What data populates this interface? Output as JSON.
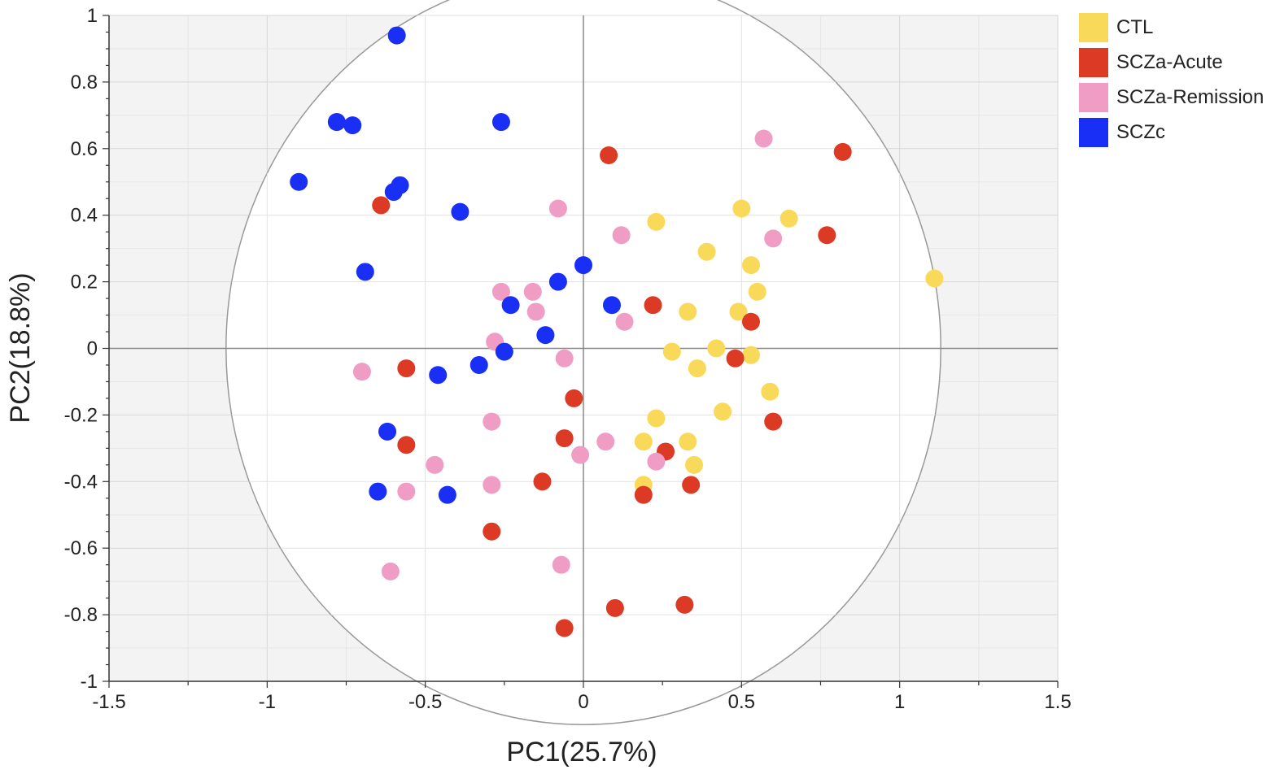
{
  "chart_data": {
    "type": "scatter",
    "xlabel": "PC1(25.7%)",
    "ylabel": "PC2(18.8%)",
    "xlim": [
      -1.5,
      1.5
    ],
    "ylim": [
      -1,
      1
    ],
    "xticks": [
      -1.5,
      -1,
      -0.5,
      0,
      0.5,
      1,
      1.5
    ],
    "yticks": [
      -1,
      -0.8,
      -0.6,
      -0.4,
      -0.2,
      0,
      0.2,
      0.4,
      0.6,
      0.8,
      1
    ],
    "xtick_labels": [
      "-1.5",
      "-1",
      "-0.5",
      "0",
      "0.5",
      "1",
      "1.5"
    ],
    "ytick_labels": [
      "-1",
      "-0.8",
      "-0.6",
      "-0.4",
      "-0.2",
      "0",
      "0.2",
      "0.4",
      "0.6",
      "0.8",
      "1"
    ],
    "grid": true,
    "unit_circle_radius": 1.13,
    "legend_position": "right",
    "series": [
      {
        "name": "CTL",
        "color": "#f9d95a",
        "points": [
          [
            0.23,
            0.38
          ],
          [
            0.5,
            0.42
          ],
          [
            0.65,
            0.39
          ],
          [
            0.39,
            0.29
          ],
          [
            0.53,
            0.25
          ],
          [
            0.55,
            0.17
          ],
          [
            0.33,
            0.11
          ],
          [
            0.49,
            0.11
          ],
          [
            1.11,
            0.21
          ],
          [
            0.28,
            -0.01
          ],
          [
            0.42,
            0.0
          ],
          [
            0.53,
            -0.02
          ],
          [
            0.36,
            -0.06
          ],
          [
            0.59,
            -0.13
          ],
          [
            0.44,
            -0.19
          ],
          [
            0.23,
            -0.21
          ],
          [
            0.19,
            -0.28
          ],
          [
            0.33,
            -0.28
          ],
          [
            0.35,
            -0.35
          ],
          [
            0.19,
            -0.41
          ]
        ]
      },
      {
        "name": "SCZa-Acute",
        "color": "#dc3a25",
        "points": [
          [
            0.08,
            0.58
          ],
          [
            0.82,
            0.59
          ],
          [
            -0.64,
            0.43
          ],
          [
            0.77,
            0.34
          ],
          [
            0.22,
            0.13
          ],
          [
            0.53,
            0.08
          ],
          [
            0.48,
            -0.03
          ],
          [
            -0.56,
            -0.06
          ],
          [
            -0.03,
            -0.15
          ],
          [
            0.6,
            -0.22
          ],
          [
            -0.56,
            -0.29
          ],
          [
            -0.06,
            -0.27
          ],
          [
            0.26,
            -0.31
          ],
          [
            -0.13,
            -0.4
          ],
          [
            0.34,
            -0.41
          ],
          [
            0.19,
            -0.44
          ],
          [
            -0.29,
            -0.55
          ],
          [
            0.1,
            -0.78
          ],
          [
            0.32,
            -0.77
          ],
          [
            -0.06,
            -0.84
          ]
        ]
      },
      {
        "name": "SCZa-Remission",
        "color": "#f09dc6",
        "points": [
          [
            0.57,
            0.63
          ],
          [
            -0.08,
            0.42
          ],
          [
            0.12,
            0.34
          ],
          [
            0.6,
            0.33
          ],
          [
            -0.26,
            0.17
          ],
          [
            -0.16,
            0.17
          ],
          [
            -0.15,
            0.11
          ],
          [
            0.13,
            0.08
          ],
          [
            -0.28,
            0.02
          ],
          [
            -0.06,
            -0.03
          ],
          [
            -0.7,
            -0.07
          ],
          [
            -0.29,
            -0.22
          ],
          [
            0.07,
            -0.28
          ],
          [
            -0.01,
            -0.32
          ],
          [
            0.23,
            -0.34
          ],
          [
            -0.47,
            -0.35
          ],
          [
            -0.29,
            -0.41
          ],
          [
            -0.56,
            -0.43
          ],
          [
            -0.07,
            -0.65
          ],
          [
            -0.61,
            -0.67
          ]
        ]
      },
      {
        "name": "SCZc",
        "color": "#1a2ff5",
        "points": [
          [
            -0.59,
            0.94
          ],
          [
            -0.78,
            0.68
          ],
          [
            -0.73,
            0.67
          ],
          [
            -0.26,
            0.68
          ],
          [
            -0.9,
            0.5
          ],
          [
            -0.58,
            0.49
          ],
          [
            -0.6,
            0.47
          ],
          [
            -0.39,
            0.41
          ],
          [
            -0.69,
            0.23
          ],
          [
            0.0,
            0.25
          ],
          [
            -0.08,
            0.2
          ],
          [
            0.09,
            0.13
          ],
          [
            -0.23,
            0.13
          ],
          [
            -0.12,
            0.04
          ],
          [
            -0.25,
            -0.01
          ],
          [
            -0.33,
            -0.05
          ],
          [
            -0.46,
            -0.08
          ],
          [
            -0.62,
            -0.25
          ],
          [
            -0.65,
            -0.43
          ],
          [
            -0.43,
            -0.44
          ]
        ]
      }
    ]
  }
}
